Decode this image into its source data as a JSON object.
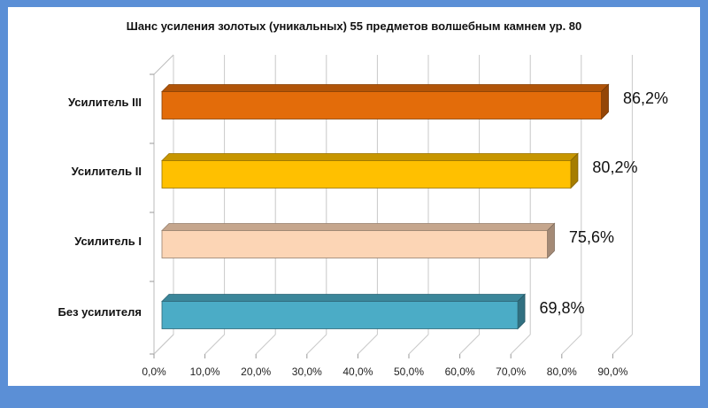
{
  "chart_data": {
    "type": "bar",
    "orientation": "horizontal",
    "title": "Шанс усиления золотых (уникальных) 55 предметов волшебным камнем ур. 80",
    "categories": [
      "Усилитель III",
      "Усилитель II",
      "Усилитель I",
      "Без усилителя"
    ],
    "values": [
      86.2,
      80.2,
      75.6,
      69.8
    ],
    "data_labels": [
      "86,2%",
      "80,2%",
      "75,6%",
      "69,8%"
    ],
    "colors": [
      "#e36c0a",
      "#ffc000",
      "#fcd5b5",
      "#4bacc6"
    ],
    "xticks": [
      "0,0%",
      "10,0%",
      "20,0%",
      "30,0%",
      "40,0%",
      "50,0%",
      "60,0%",
      "70,0%",
      "80,0%",
      "90,0%"
    ],
    "xlim": [
      0,
      90
    ],
    "grid": true,
    "legend": "none",
    "xlabel": "",
    "ylabel": ""
  }
}
